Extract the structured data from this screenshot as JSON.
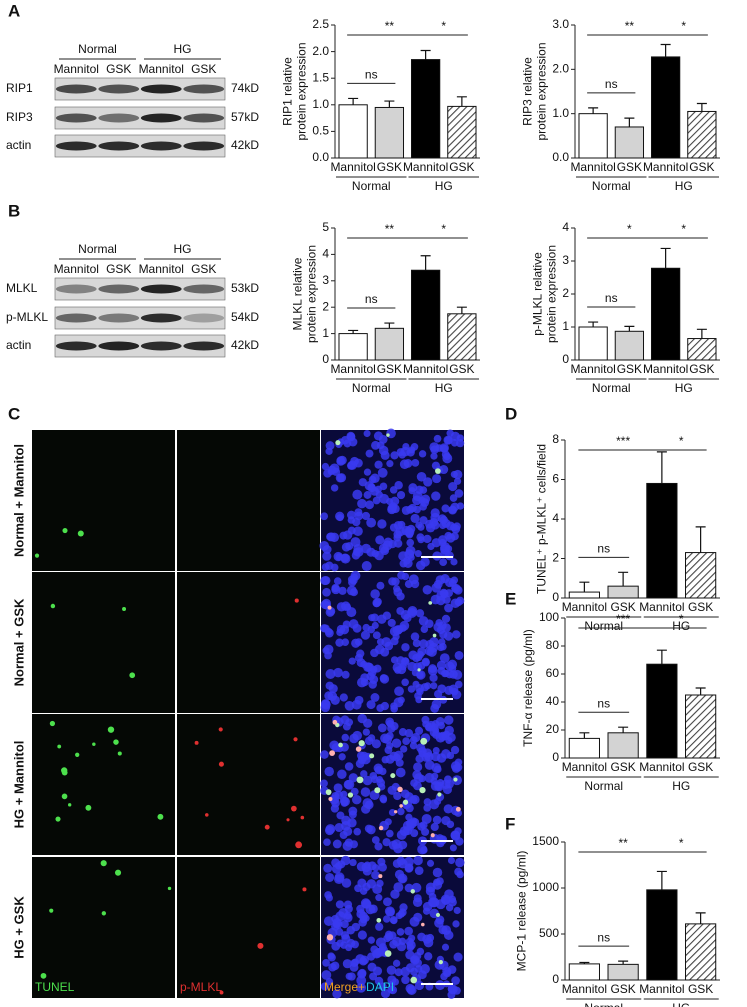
{
  "panel_labels": [
    "A",
    "B",
    "C",
    "D",
    "E",
    "F"
  ],
  "blots": [
    {
      "groups": [
        "Normal",
        "HG"
      ],
      "lanes": [
        "Mannitol",
        "GSK",
        "Mannitol",
        "GSK"
      ],
      "rows": [
        {
          "name": "RIP1",
          "size": "74kD"
        },
        {
          "name": "RIP3",
          "size": "57kD"
        },
        {
          "name": "actin",
          "size": "42kD"
        }
      ]
    },
    {
      "groups": [
        "Normal",
        "HG"
      ],
      "lanes": [
        "Mannitol",
        "GSK",
        "Mannitol",
        "GSK"
      ],
      "rows": [
        {
          "name": "MLKL",
          "size": "53kD"
        },
        {
          "name": "p-MLKL",
          "size": "54kD"
        },
        {
          "name": "actin",
          "size": "42kD"
        }
      ]
    }
  ],
  "microscopy": {
    "rows": [
      "Normal + Mannitol",
      "Normal + GSK",
      "HG + Mannitol",
      "HG + GSK"
    ],
    "channels": [
      "TUNEL",
      "p-MLKL",
      "Merge+",
      "DAPI"
    ]
  },
  "chart_data": [
    {
      "type": "bar",
      "ylabel": [
        "RIP1 relative",
        "protein expression"
      ],
      "categories": [
        "Mannitol",
        "GSK",
        "Mannitol",
        "GSK"
      ],
      "groups": [
        "Normal",
        "HG"
      ],
      "values": [
        1.0,
        0.95,
        1.85,
        0.97
      ],
      "errors": [
        0.12,
        0.12,
        0.17,
        0.18
      ],
      "colors": [
        "#ffffff",
        "#d3d3d3",
        "#000000",
        "#ffffff"
      ],
      "hatched": [
        false,
        false,
        false,
        true
      ],
      "ylim": [
        0,
        2.5
      ],
      "yticks": [
        {
          "value": 0,
          "label": "0.0"
        },
        {
          "value": 0.5,
          "label": "0.5"
        },
        {
          "value": 1,
          "label": "1.0"
        },
        {
          "value": 1.5,
          "label": "1.5"
        },
        {
          "value": 2,
          "label": "2.0"
        },
        {
          "value": 2.5,
          "label": "2.5"
        }
      ],
      "annotations": [
        "ns",
        "**",
        "*"
      ]
    },
    {
      "type": "bar",
      "ylabel": [
        "RIP3 relative",
        "protein expression"
      ],
      "categories": [
        "Mannitol",
        "GSK",
        "Mannitol",
        "GSK"
      ],
      "groups": [
        "Normal",
        "HG"
      ],
      "values": [
        1.0,
        0.7,
        2.28,
        1.05
      ],
      "errors": [
        0.13,
        0.2,
        0.28,
        0.18
      ],
      "colors": [
        "#ffffff",
        "#d3d3d3",
        "#000000",
        "#ffffff"
      ],
      "hatched": [
        false,
        false,
        false,
        true
      ],
      "ylim": [
        0,
        3
      ],
      "yticks": [
        {
          "value": 0,
          "label": "0.0"
        },
        {
          "value": 1,
          "label": "1.0"
        },
        {
          "value": 2,
          "label": "2.0"
        },
        {
          "value": 3,
          "label": "3.0"
        }
      ],
      "annotations": [
        "ns",
        "**",
        "*"
      ]
    },
    {
      "type": "bar",
      "ylabel": [
        "MLKL relative",
        "protein expression"
      ],
      "categories": [
        "Mannitol",
        "GSK",
        "Mannitol",
        "GSK"
      ],
      "groups": [
        "Normal",
        "HG"
      ],
      "values": [
        1.0,
        1.2,
        3.4,
        1.75
      ],
      "errors": [
        0.12,
        0.2,
        0.55,
        0.25
      ],
      "colors": [
        "#ffffff",
        "#d3d3d3",
        "#000000",
        "#ffffff"
      ],
      "hatched": [
        false,
        false,
        false,
        true
      ],
      "ylim": [
        0,
        5
      ],
      "yticks": [
        0,
        1,
        2,
        3,
        4,
        5
      ],
      "annotations": [
        "ns",
        "**",
        "*"
      ]
    },
    {
      "type": "bar",
      "ylabel": [
        "p-MLKL relative",
        "protein expression"
      ],
      "categories": [
        "Mannitol",
        "GSK",
        "Mannitol",
        "GSK"
      ],
      "groups": [
        "Normal",
        "HG"
      ],
      "values": [
        1.0,
        0.87,
        2.78,
        0.65
      ],
      "errors": [
        0.15,
        0.15,
        0.6,
        0.28
      ],
      "colors": [
        "#ffffff",
        "#d3d3d3",
        "#000000",
        "#ffffff"
      ],
      "hatched": [
        false,
        false,
        false,
        true
      ],
      "ylim": [
        0,
        4
      ],
      "yticks": [
        0,
        1,
        2,
        3,
        4
      ],
      "annotations": [
        "ns",
        "*",
        "*"
      ]
    },
    {
      "type": "bar",
      "ylabel": [
        "TUNEL⁺ p-MLKL⁺ cells/field"
      ],
      "categories": [
        "Mannitol",
        "GSK",
        "Mannitol",
        "GSK"
      ],
      "groups": [
        "Normal",
        "HG"
      ],
      "values": [
        0.3,
        0.6,
        5.8,
        2.3
      ],
      "errors": [
        0.5,
        0.7,
        1.6,
        1.3
      ],
      "colors": [
        "#ffffff",
        "#d3d3d3",
        "#000000",
        "#ffffff"
      ],
      "hatched": [
        false,
        false,
        false,
        true
      ],
      "ylim": [
        0,
        8
      ],
      "yticks": [
        0,
        2,
        4,
        6,
        8
      ],
      "annotations": [
        "ns",
        "***",
        "*"
      ]
    },
    {
      "type": "bar",
      "ylabel": [
        "TNF-α release (pg/ml)"
      ],
      "categories": [
        "Mannitol",
        "GSK",
        "Mannitol",
        "GSK"
      ],
      "groups": [
        "Normal",
        "HG"
      ],
      "values": [
        14,
        18,
        67,
        45
      ],
      "errors": [
        4,
        4,
        10,
        5
      ],
      "colors": [
        "#ffffff",
        "#d3d3d3",
        "#000000",
        "#ffffff"
      ],
      "hatched": [
        false,
        false,
        false,
        true
      ],
      "ylim": [
        0,
        100
      ],
      "yticks": [
        0,
        20,
        40,
        60,
        80,
        100
      ],
      "annotations": [
        "ns",
        "***",
        "*"
      ]
    },
    {
      "type": "bar",
      "ylabel": [
        "MCP-1 release (pg/ml)"
      ],
      "categories": [
        "Mannitol",
        "GSK",
        "Mannitol",
        "GSK"
      ],
      "groups": [
        "Normal",
        "HG"
      ],
      "values": [
        175,
        170,
        980,
        610
      ],
      "errors": [
        15,
        35,
        200,
        120
      ],
      "colors": [
        "#ffffff",
        "#d3d3d3",
        "#000000",
        "#ffffff"
      ],
      "hatched": [
        false,
        false,
        false,
        true
      ],
      "ylim": [
        0,
        1500
      ],
      "yticks": [
        0,
        500,
        1000,
        1500
      ],
      "annotations": [
        "ns",
        "**",
        "*"
      ]
    }
  ]
}
